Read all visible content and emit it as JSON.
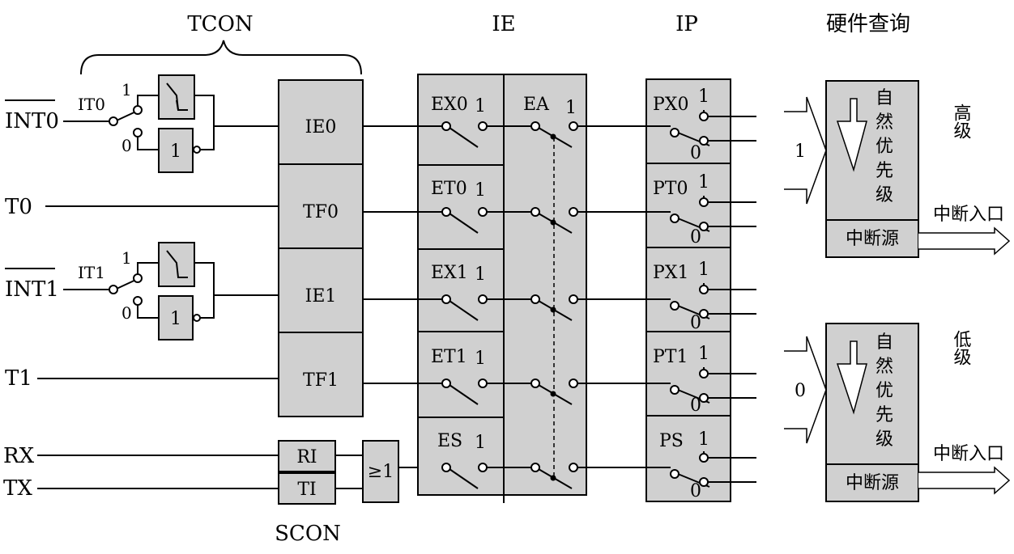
{
  "headers": {
    "tcon": "TCON",
    "ie": "IE",
    "ip": "IP",
    "hw_query": "硬件查询",
    "scon": "SCON"
  },
  "inputs": {
    "int0": "INT0",
    "t0": "T0",
    "int1": "INT1",
    "t1": "T1",
    "rx": "RX",
    "tx": "TX"
  },
  "trigger_select": {
    "it0": "IT0",
    "it1": "IT1",
    "one": "1",
    "zero": "0",
    "not_gate": "1"
  },
  "tcon_flags": [
    "IE0",
    "TF0",
    "IE1",
    "TF1"
  ],
  "scon_flags": [
    "RI",
    "TI"
  ],
  "or_gate": "≥1",
  "ie_bits": [
    "EX0",
    "ET0",
    "EX1",
    "ET1",
    "ES"
  ],
  "ea_bit": "EA",
  "ip_bits": [
    "PX0",
    "PT0",
    "PX1",
    "PT1",
    "PS"
  ],
  "switch_on": "1",
  "switch_off": "0",
  "queues": [
    {
      "level_input": "1",
      "priority": "高级",
      "natural_chars": [
        "自",
        "然",
        "优",
        "先",
        "级"
      ],
      "source": "中断源",
      "entry": "中断入口"
    },
    {
      "level_input": "0",
      "priority": "低级",
      "natural_chars": [
        "自",
        "然",
        "优",
        "先",
        "级"
      ],
      "source": "中断源",
      "entry": "中断入口"
    }
  ]
}
